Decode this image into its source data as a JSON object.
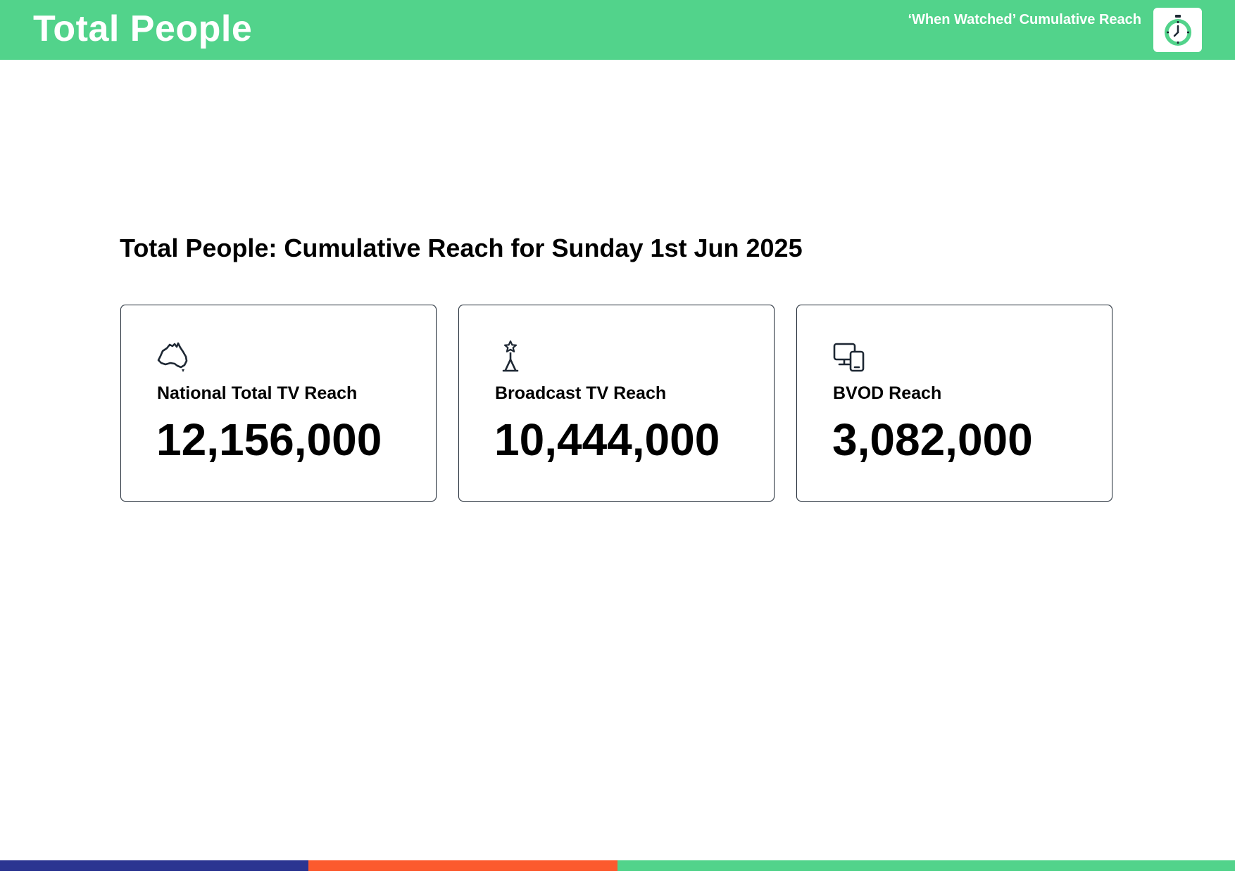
{
  "header": {
    "title": "Total People",
    "subtitle": "‘When Watched’ Cumulative Reach",
    "logo_icon": "stopwatch-icon"
  },
  "heading": "Total People: Cumulative Reach for Sunday 1st Jun 2025",
  "cards": [
    {
      "icon": "australia-map-icon",
      "label": "National Total TV Reach",
      "value": "12,156,000"
    },
    {
      "icon": "broadcast-tower-icon",
      "label": "Broadcast TV Reach",
      "value": "10,444,000"
    },
    {
      "icon": "devices-icon",
      "label": "BVOD Reach",
      "value": "3,082,000"
    }
  ],
  "colors": {
    "header_green": "#52d38b",
    "navy": "#2b3591",
    "orange": "#fc5a2e",
    "icon_dark": "#1d2733"
  }
}
